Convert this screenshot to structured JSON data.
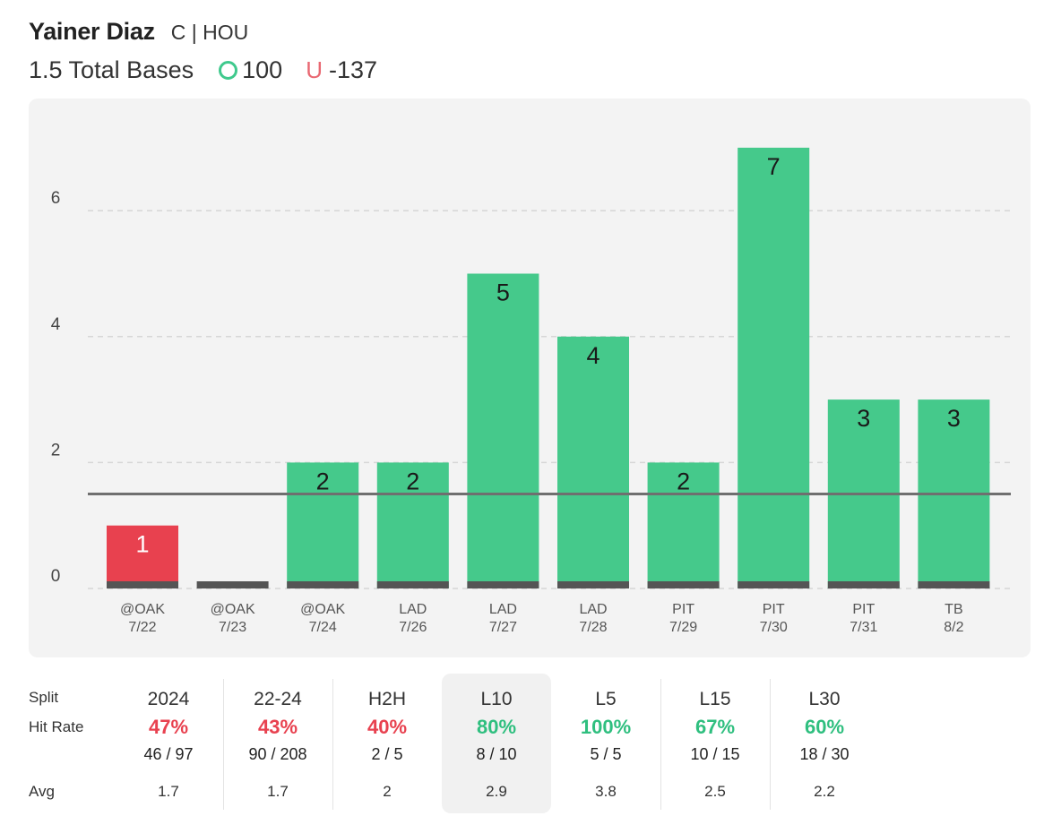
{
  "player": {
    "name": "Yainer Diaz",
    "meta": "C | HOU"
  },
  "prop": {
    "line_label": "1.5 Total Bases",
    "over_odds": "100",
    "under_symbol": "U",
    "under_odds": "-137"
  },
  "colors": {
    "over": "#45c98b",
    "under": "#e8414f",
    "baseline": "#555555",
    "line": "#6f6f6f",
    "grid": "#d6d6d6"
  },
  "chart_data": {
    "type": "bar",
    "title": "1.5 Total Bases",
    "categories": [
      "@OAK 7/22",
      "@OAK 7/23",
      "@OAK 7/24",
      "LAD 7/26",
      "LAD 7/27",
      "LAD 7/28",
      "PIT 7/29",
      "PIT 7/30",
      "PIT 7/31",
      "TB 8/2"
    ],
    "opponents": [
      "@OAK",
      "@OAK",
      "@OAK",
      "LAD",
      "LAD",
      "LAD",
      "PIT",
      "PIT",
      "PIT",
      "TB"
    ],
    "dates": [
      "7/22",
      "7/23",
      "7/24",
      "7/26",
      "7/27",
      "7/28",
      "7/29",
      "7/30",
      "7/31",
      "8/2"
    ],
    "values": [
      1,
      0,
      2,
      2,
      5,
      4,
      2,
      7,
      3,
      3
    ],
    "value_labels": [
      "1",
      "",
      "2",
      "2",
      "5",
      "4",
      "2",
      "7",
      "3",
      "3"
    ],
    "line": 1.5,
    "yticks": [
      0,
      2,
      4,
      6
    ],
    "ylim": [
      0,
      7.3
    ],
    "grid": true,
    "xlabel": "",
    "ylabel": ""
  },
  "splits": {
    "labels": {
      "split": "Split",
      "hit_rate": "Hit Rate",
      "avg": "Avg"
    },
    "columns": [
      {
        "name": "2024",
        "rate": "47%",
        "count": "46 / 97",
        "avg": "1.7",
        "status": "red"
      },
      {
        "name": "22-24",
        "rate": "43%",
        "count": "90 / 208",
        "avg": "1.7",
        "status": "red"
      },
      {
        "name": "H2H",
        "rate": "40%",
        "count": "2 / 5",
        "avg": "2",
        "status": "red"
      },
      {
        "name": "L10",
        "rate": "80%",
        "count": "8 / 10",
        "avg": "2.9",
        "status": "green",
        "selected": true
      },
      {
        "name": "L5",
        "rate": "100%",
        "count": "5 / 5",
        "avg": "3.8",
        "status": "green"
      },
      {
        "name": "L15",
        "rate": "67%",
        "count": "10 / 15",
        "avg": "2.5",
        "status": "green"
      },
      {
        "name": "L30",
        "rate": "60%",
        "count": "18 / 30",
        "avg": "2.2",
        "status": "green"
      }
    ]
  }
}
